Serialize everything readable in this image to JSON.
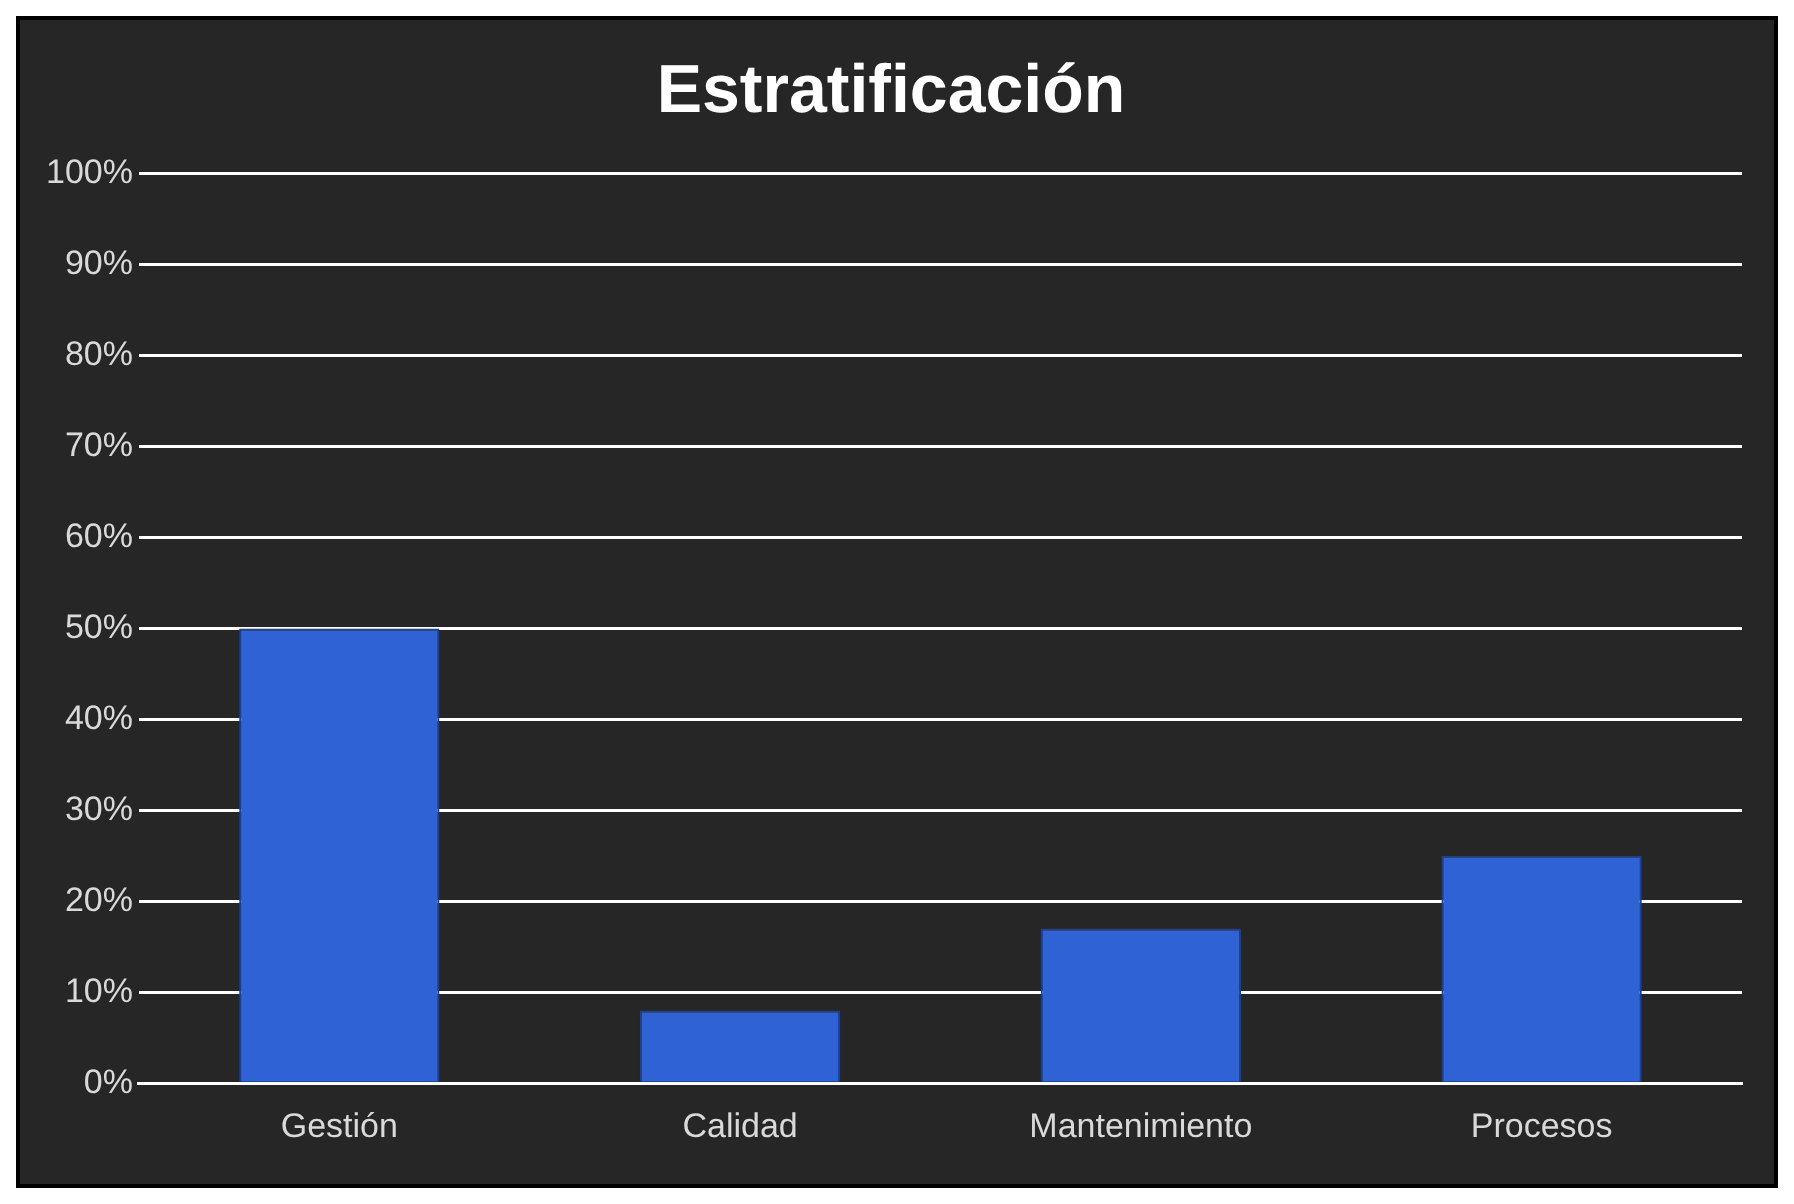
{
  "chart_data": {
    "type": "bar",
    "title": "Estratificación",
    "categories": [
      "Gestión",
      "Calidad",
      "Mantenimiento",
      "Procesos"
    ],
    "values": [
      50,
      8,
      17,
      25
    ],
    "color": "#2f62d4",
    "ylim": [
      0,
      100
    ],
    "yticks": [
      {
        "value": 0,
        "label": "0%"
      },
      {
        "value": 10,
        "label": "10%"
      },
      {
        "value": 20,
        "label": "20%"
      },
      {
        "value": 30,
        "label": "30%"
      },
      {
        "value": 40,
        "label": "40%"
      },
      {
        "value": 50,
        "label": "50%"
      },
      {
        "value": 60,
        "label": "60%"
      },
      {
        "value": 70,
        "label": "70%"
      },
      {
        "value": 80,
        "label": "80%"
      },
      {
        "value": 90,
        "label": "90%"
      },
      {
        "value": 100,
        "label": "100%"
      }
    ],
    "grid": "y",
    "legend": false
  }
}
